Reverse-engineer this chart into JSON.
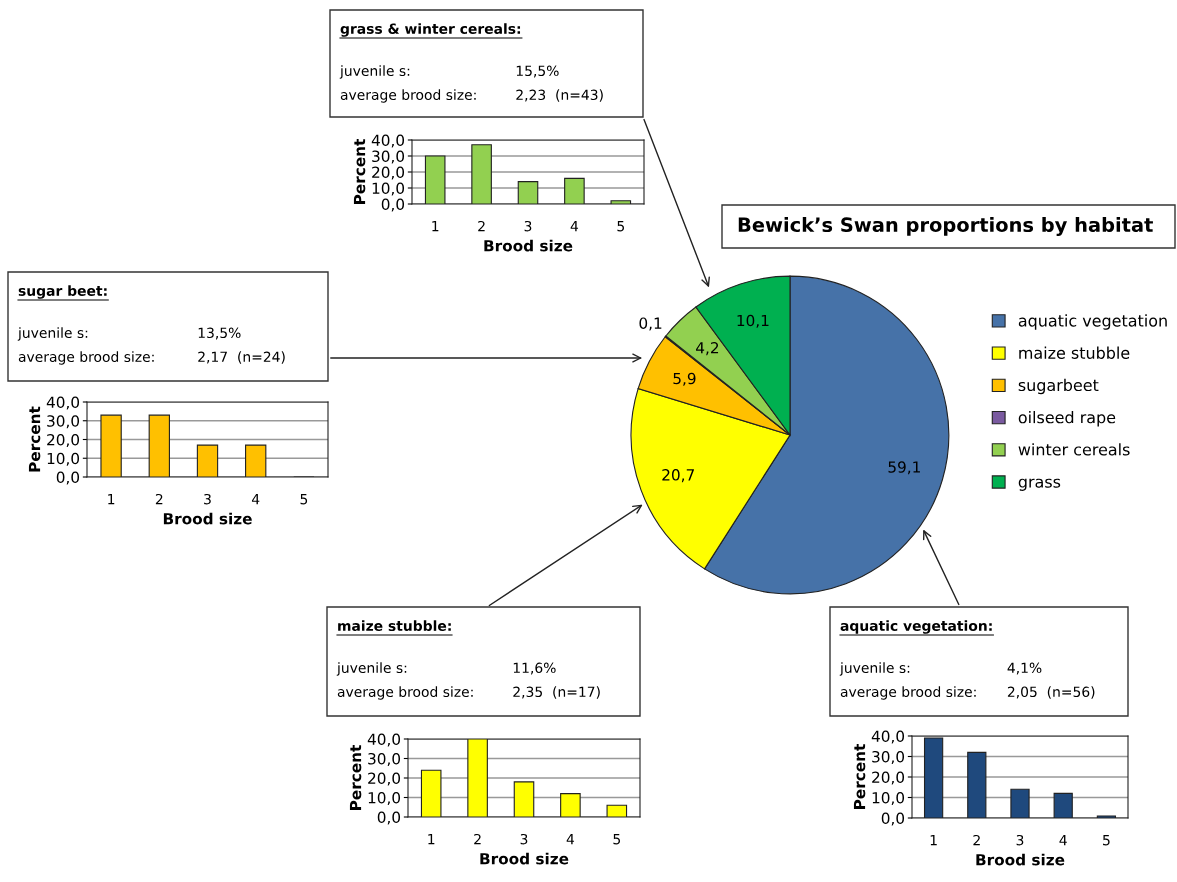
{
  "chart_data": [
    {
      "type": "pie",
      "title": "Bewick’s Swan proportions by habitat",
      "categories": [
        "aquatic vegetation",
        "maize stubble",
        "sugarbeet",
        "oilseed rape",
        "winter cereals",
        "grass"
      ],
      "values": [
        59.1,
        20.7,
        5.9,
        0.1,
        4.2,
        10.1
      ],
      "value_labels": [
        "59,1",
        "20,7",
        "5,9",
        "0,1",
        "4,2",
        "10,1"
      ],
      "colors": [
        "#4672a8",
        "#ffff00",
        "#ffc000",
        "#7a5aa0",
        "#92d050",
        "#00b050"
      ],
      "legend": "right"
    },
    {
      "type": "bar",
      "title": "grass & winter cereals:",
      "annotations": [
        "juvenile s:",
        "15,5%",
        "average brood size:",
        "2,23  (n=43)"
      ],
      "categories": [
        "1",
        "2",
        "3",
        "4",
        "5"
      ],
      "values": [
        30,
        37,
        14,
        16,
        2
      ],
      "color": "#92d050",
      "xlabel": "Brood size",
      "ylabel": "Percent",
      "ylim": [
        0,
        40
      ],
      "yticks": [
        {
          "value": 0,
          "label": "0,0"
        },
        {
          "value": 10,
          "label": "10,0"
        },
        {
          "value": 20,
          "label": "20,0"
        },
        {
          "value": 30,
          "label": "30,0"
        },
        {
          "value": 40,
          "label": "40,0"
        }
      ],
      "grid": "y"
    },
    {
      "type": "bar",
      "title": "sugar beet:",
      "annotations": [
        "juvenile s:",
        "13,5%",
        "average brood size:",
        "2,17  (n=24)"
      ],
      "categories": [
        "1",
        "2",
        "3",
        "4",
        "5"
      ],
      "values": [
        33,
        33,
        17,
        17,
        0
      ],
      "color": "#ffc000",
      "xlabel": "Brood size",
      "ylabel": "Percent",
      "ylim": [
        0,
        40
      ],
      "yticks": [
        {
          "value": 0,
          "label": "0,0"
        },
        {
          "value": 10,
          "label": "10,0"
        },
        {
          "value": 20,
          "label": "20,0"
        },
        {
          "value": 30,
          "label": "30,0"
        },
        {
          "value": 40,
          "label": "40,0"
        }
      ],
      "grid": "y"
    },
    {
      "type": "bar",
      "title": "maize stubble:",
      "annotations": [
        "juvenile s:",
        "11,6%",
        "average brood size:",
        "2,35  (n=17)"
      ],
      "categories": [
        "1",
        "2",
        "3",
        "4",
        "5"
      ],
      "values": [
        24,
        40,
        18,
        12,
        6
      ],
      "color": "#ffff00",
      "xlabel": "Brood size",
      "ylabel": "Percent",
      "ylim": [
        0,
        40
      ],
      "yticks": [
        {
          "value": 0,
          "label": "0,0"
        },
        {
          "value": 10,
          "label": "10,0"
        },
        {
          "value": 20,
          "label": "20,0"
        },
        {
          "value": 30,
          "label": "30,0"
        },
        {
          "value": 40,
          "label": "40,0"
        }
      ],
      "grid": "y"
    },
    {
      "type": "bar",
      "title": "aquatic vegetation:",
      "annotations": [
        "juvenile s:",
        "4,1%",
        "average brood size:",
        "2,05  (n=56)"
      ],
      "categories": [
        "1",
        "2",
        "3",
        "4",
        "5"
      ],
      "values": [
        39,
        32,
        14,
        12,
        1
      ],
      "color": "#1f497d",
      "xlabel": "Brood size",
      "ylabel": "Percent",
      "ylim": [
        0,
        40
      ],
      "yticks": [
        {
          "value": 0,
          "label": "0,0"
        },
        {
          "value": 10,
          "label": "10,0"
        },
        {
          "value": 20,
          "label": "20,0"
        },
        {
          "value": 30,
          "label": "30,0"
        },
        {
          "value": 40,
          "label": "40,0"
        }
      ],
      "grid": "y"
    }
  ]
}
